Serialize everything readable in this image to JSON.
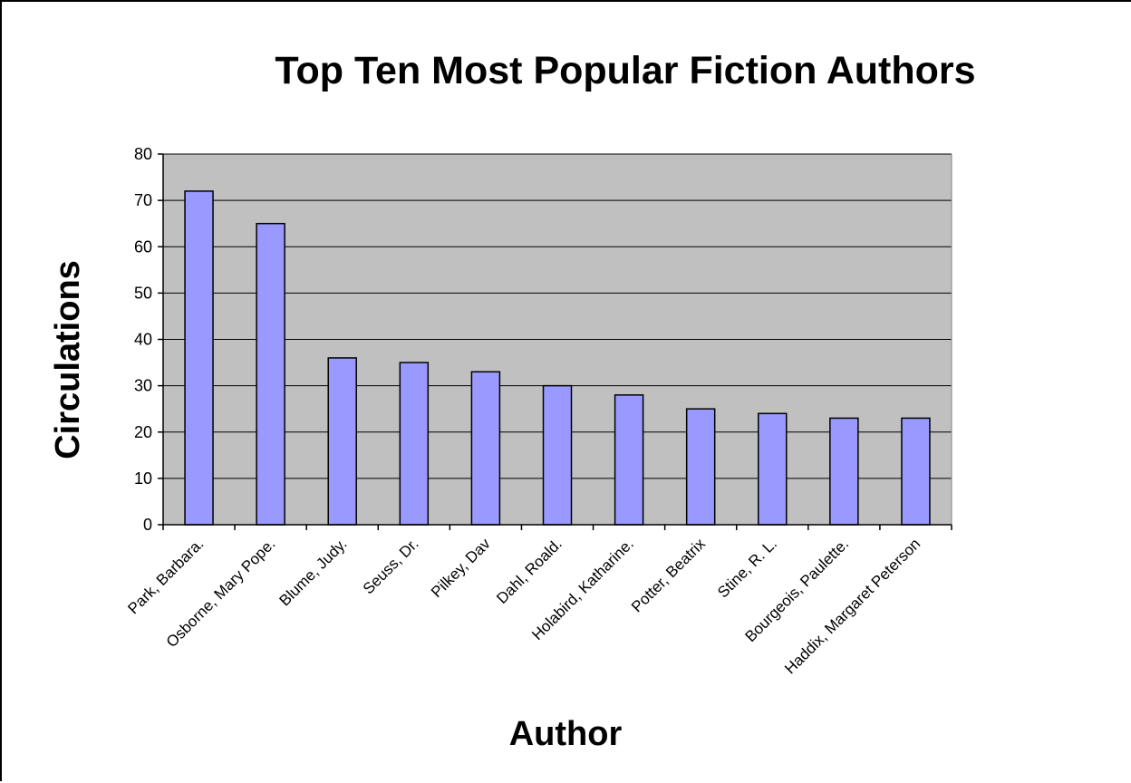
{
  "chart_data": {
    "type": "bar",
    "title": "Top Ten Most Popular Fiction Authors",
    "xlabel": "Author",
    "ylabel": "Circulations",
    "ylim": [
      0,
      80
    ],
    "yticks": [
      0,
      10,
      20,
      30,
      40,
      50,
      60,
      70,
      80
    ],
    "grid": true,
    "legend": "none",
    "categories": [
      "Park, Barbara.",
      "Osborne, Mary Pope.",
      "Blume, Judy.",
      "Seuss, Dr.",
      "Pilkey, Dav",
      "Dahl, Roald.",
      "Holabird, Katharine.",
      "Potter, Beatrix",
      "Stine, R. L.",
      "Bourgeois, Paulette.",
      "Haddix, Margaret Peterson"
    ],
    "values": [
      72,
      65,
      36,
      35,
      33,
      30,
      28,
      25,
      24,
      23,
      23
    ],
    "colors": {
      "bar_fill": "#9999ff",
      "bar_stroke": "#000000",
      "plot_background": "#c0c0c0",
      "gridline": "#000000",
      "text": "#000000"
    }
  }
}
